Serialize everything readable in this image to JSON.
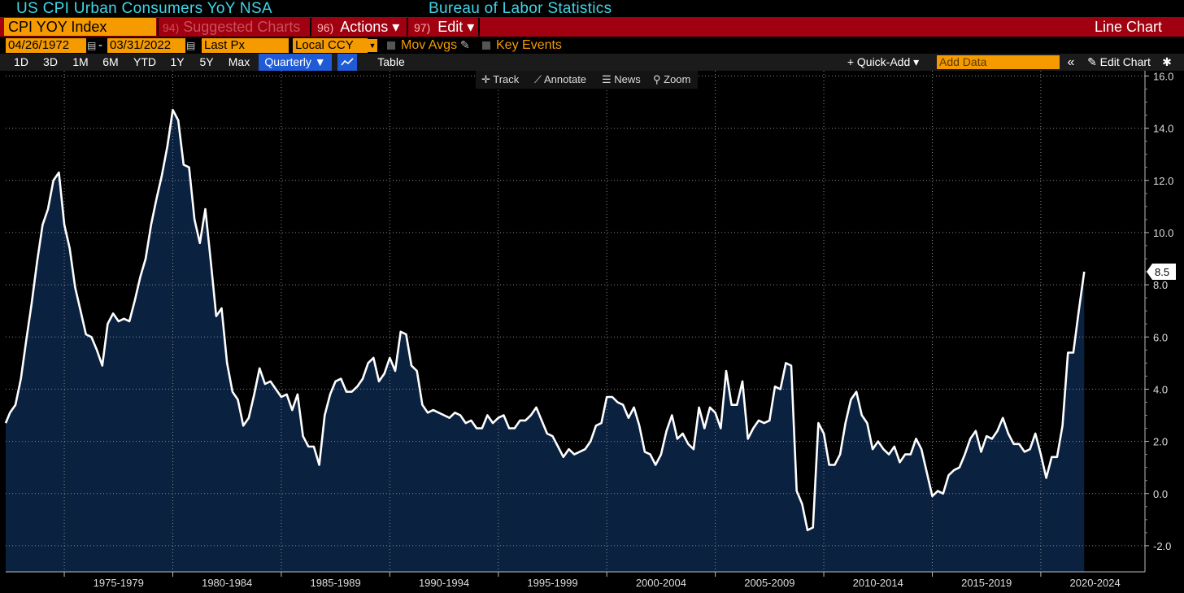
{
  "header": {
    "title": "US CPI Urban Consumers YoY NSA",
    "source": "Bureau of Labor Statistics"
  },
  "menu": {
    "ticker": "CPI YOY Index",
    "suggested_num": "94)",
    "suggested_label": "Suggested Charts",
    "actions_num": "96)",
    "actions_label": "Actions ▾",
    "edit_num": "97)",
    "edit_label": "Edit ▾",
    "chart_type": "Line Chart"
  },
  "settings": {
    "start_date": "04/26/1972",
    "date_separator": "-",
    "end_date": "03/31/2022",
    "field": "Last Px",
    "currency": "Local CCY",
    "mov_avgs": "Mov Avgs",
    "key_events": "Key Events"
  },
  "ranges": {
    "items": [
      "1D",
      "3D",
      "1M",
      "6M",
      "YTD",
      "1Y",
      "5Y",
      "Max"
    ],
    "period": "Quarterly ▼",
    "table": "Table",
    "quick_add": "+ Quick-Add ▾",
    "add_data_placeholder": "Add Data",
    "collapse": "«",
    "edit_chart": "✎ Edit Chart",
    "settings_icon": "✱"
  },
  "tools": {
    "track": "✛ Track",
    "annotate": "⟋ Annotate",
    "news": "☰ News",
    "zoom": "⚲ Zoom"
  },
  "colors": {
    "line": "#ffffff",
    "fill": "#0b2140",
    "header_text": "#3fd6e6",
    "menu_bar": "#a0000f",
    "field_orange": "#f59b00",
    "selected_blue": "#1f5bd6"
  },
  "chart_data": {
    "type": "area",
    "title": "",
    "xlabel": "",
    "ylabel": "",
    "frequency": "quarterly",
    "x_tick_labels": [
      "1975-1979",
      "1980-1984",
      "1985-1989",
      "1990-1994",
      "1995-1999",
      "2000-2004",
      "2005-2009",
      "2010-2014",
      "2015-2019",
      "2020-2024"
    ],
    "y_tick_labels": [
      "-2.0",
      "0.0",
      "2.0",
      "4.0",
      "6.0",
      "8.0",
      "10.0",
      "12.0",
      "14.0",
      "16.0"
    ],
    "ylim": [
      -3,
      16.2
    ],
    "xlim": [
      1972.3,
      2024.8
    ],
    "y_axis_side": "right",
    "grid": true,
    "last_value_label": "8.5",
    "series": [
      {
        "values": [
          [
            1972.3,
            2.7
          ],
          [
            1972.5,
            3.1
          ],
          [
            1972.75,
            3.4
          ],
          [
            1973.0,
            4.4
          ],
          [
            1973.25,
            5.9
          ],
          [
            1973.5,
            7.3
          ],
          [
            1973.75,
            8.9
          ],
          [
            1974.0,
            10.3
          ],
          [
            1974.25,
            10.9
          ],
          [
            1974.5,
            12.0
          ],
          [
            1974.75,
            12.3
          ],
          [
            1975.0,
            10.3
          ],
          [
            1975.25,
            9.4
          ],
          [
            1975.5,
            7.9
          ],
          [
            1975.75,
            7.0
          ],
          [
            1976.0,
            6.1
          ],
          [
            1976.25,
            6.0
          ],
          [
            1976.5,
            5.5
          ],
          [
            1976.75,
            4.9
          ],
          [
            1977.0,
            6.5
          ],
          [
            1977.25,
            6.9
          ],
          [
            1977.5,
            6.6
          ],
          [
            1977.75,
            6.7
          ],
          [
            1978.0,
            6.6
          ],
          [
            1978.25,
            7.4
          ],
          [
            1978.5,
            8.3
          ],
          [
            1978.75,
            9.0
          ],
          [
            1979.0,
            10.3
          ],
          [
            1979.25,
            11.3
          ],
          [
            1979.5,
            12.2
          ],
          [
            1979.75,
            13.3
          ],
          [
            1980.0,
            14.7
          ],
          [
            1980.25,
            14.3
          ],
          [
            1980.5,
            12.6
          ],
          [
            1980.75,
            12.5
          ],
          [
            1981.0,
            10.5
          ],
          [
            1981.25,
            9.6
          ],
          [
            1981.5,
            10.9
          ],
          [
            1981.75,
            8.9
          ],
          [
            1982.0,
            6.8
          ],
          [
            1982.25,
            7.1
          ],
          [
            1982.5,
            5.0
          ],
          [
            1982.75,
            3.9
          ],
          [
            1983.0,
            3.6
          ],
          [
            1983.25,
            2.6
          ],
          [
            1983.5,
            2.9
          ],
          [
            1983.75,
            3.8
          ],
          [
            1984.0,
            4.8
          ],
          [
            1984.25,
            4.2
          ],
          [
            1984.5,
            4.3
          ],
          [
            1984.75,
            4.0
          ],
          [
            1985.0,
            3.7
          ],
          [
            1985.25,
            3.8
          ],
          [
            1985.5,
            3.2
          ],
          [
            1985.75,
            3.8
          ],
          [
            1986.0,
            2.2
          ],
          [
            1986.25,
            1.8
          ],
          [
            1986.5,
            1.8
          ],
          [
            1986.75,
            1.1
          ],
          [
            1987.0,
            3.0
          ],
          [
            1987.25,
            3.8
          ],
          [
            1987.5,
            4.3
          ],
          [
            1987.75,
            4.4
          ],
          [
            1988.0,
            3.9
          ],
          [
            1988.25,
            3.9
          ],
          [
            1988.5,
            4.1
          ],
          [
            1988.75,
            4.4
          ],
          [
            1989.0,
            5.0
          ],
          [
            1989.25,
            5.2
          ],
          [
            1989.5,
            4.3
          ],
          [
            1989.75,
            4.6
          ],
          [
            1990.0,
            5.2
          ],
          [
            1990.25,
            4.7
          ],
          [
            1990.5,
            6.2
          ],
          [
            1990.75,
            6.1
          ],
          [
            1991.0,
            4.9
          ],
          [
            1991.25,
            4.7
          ],
          [
            1991.5,
            3.4
          ],
          [
            1991.75,
            3.1
          ],
          [
            1992.0,
            3.2
          ],
          [
            1992.25,
            3.1
          ],
          [
            1992.5,
            3.0
          ],
          [
            1992.75,
            2.9
          ],
          [
            1993.0,
            3.1
          ],
          [
            1993.25,
            3.0
          ],
          [
            1993.5,
            2.7
          ],
          [
            1993.75,
            2.8
          ],
          [
            1994.0,
            2.5
          ],
          [
            1994.25,
            2.5
          ],
          [
            1994.5,
            3.0
          ],
          [
            1994.75,
            2.7
          ],
          [
            1995.0,
            2.9
          ],
          [
            1995.25,
            3.0
          ],
          [
            1995.5,
            2.5
          ],
          [
            1995.75,
            2.5
          ],
          [
            1996.0,
            2.8
          ],
          [
            1996.25,
            2.8
          ],
          [
            1996.5,
            3.0
          ],
          [
            1996.75,
            3.3
          ],
          [
            1997.0,
            2.8
          ],
          [
            1997.25,
            2.3
          ],
          [
            1997.5,
            2.2
          ],
          [
            1997.75,
            1.8
          ],
          [
            1998.0,
            1.4
          ],
          [
            1998.25,
            1.7
          ],
          [
            1998.5,
            1.5
          ],
          [
            1998.75,
            1.6
          ],
          [
            1999.0,
            1.7
          ],
          [
            1999.25,
            2.0
          ],
          [
            1999.5,
            2.6
          ],
          [
            1999.75,
            2.7
          ],
          [
            2000.0,
            3.7
          ],
          [
            2000.25,
            3.7
          ],
          [
            2000.5,
            3.5
          ],
          [
            2000.75,
            3.4
          ],
          [
            2001.0,
            2.9
          ],
          [
            2001.25,
            3.3
          ],
          [
            2001.5,
            2.6
          ],
          [
            2001.75,
            1.6
          ],
          [
            2002.0,
            1.5
          ],
          [
            2002.25,
            1.1
          ],
          [
            2002.5,
            1.5
          ],
          [
            2002.75,
            2.4
          ],
          [
            2003.0,
            3.0
          ],
          [
            2003.25,
            2.1
          ],
          [
            2003.5,
            2.3
          ],
          [
            2003.75,
            1.9
          ],
          [
            2004.0,
            1.7
          ],
          [
            2004.25,
            3.3
          ],
          [
            2004.5,
            2.5
          ],
          [
            2004.75,
            3.3
          ],
          [
            2005.0,
            3.1
          ],
          [
            2005.25,
            2.5
          ],
          [
            2005.5,
            4.7
          ],
          [
            2005.75,
            3.4
          ],
          [
            2006.0,
            3.4
          ],
          [
            2006.25,
            4.3
          ],
          [
            2006.5,
            2.1
          ],
          [
            2006.75,
            2.5
          ],
          [
            2007.0,
            2.8
          ],
          [
            2007.25,
            2.7
          ],
          [
            2007.5,
            2.8
          ],
          [
            2007.75,
            4.1
          ],
          [
            2008.0,
            4.0
          ],
          [
            2008.25,
            5.0
          ],
          [
            2008.5,
            4.9
          ],
          [
            2008.75,
            0.1
          ],
          [
            2009.0,
            -0.4
          ],
          [
            2009.25,
            -1.4
          ],
          [
            2009.5,
            -1.3
          ],
          [
            2009.75,
            2.7
          ],
          [
            2010.0,
            2.3
          ],
          [
            2010.25,
            1.1
          ],
          [
            2010.5,
            1.1
          ],
          [
            2010.75,
            1.5
          ],
          [
            2011.0,
            2.7
          ],
          [
            2011.25,
            3.6
          ],
          [
            2011.5,
            3.9
          ],
          [
            2011.75,
            3.0
          ],
          [
            2012.0,
            2.7
          ],
          [
            2012.25,
            1.7
          ],
          [
            2012.5,
            2.0
          ],
          [
            2012.75,
            1.7
          ],
          [
            2013.0,
            1.5
          ],
          [
            2013.25,
            1.8
          ],
          [
            2013.5,
            1.2
          ],
          [
            2013.75,
            1.5
          ],
          [
            2014.0,
            1.5
          ],
          [
            2014.25,
            2.1
          ],
          [
            2014.5,
            1.7
          ],
          [
            2014.75,
            0.8
          ],
          [
            2015.0,
            -0.1
          ],
          [
            2015.25,
            0.1
          ],
          [
            2015.5,
            0.0
          ],
          [
            2015.75,
            0.7
          ],
          [
            2016.0,
            0.9
          ],
          [
            2016.25,
            1.0
          ],
          [
            2016.5,
            1.5
          ],
          [
            2016.75,
            2.1
          ],
          [
            2017.0,
            2.4
          ],
          [
            2017.25,
            1.6
          ],
          [
            2017.5,
            2.2
          ],
          [
            2017.75,
            2.1
          ],
          [
            2018.0,
            2.4
          ],
          [
            2018.25,
            2.9
          ],
          [
            2018.5,
            2.3
          ],
          [
            2018.75,
            1.9
          ],
          [
            2019.0,
            1.9
          ],
          [
            2019.25,
            1.6
          ],
          [
            2019.5,
            1.7
          ],
          [
            2019.75,
            2.3
          ],
          [
            2020.0,
            1.5
          ],
          [
            2020.25,
            0.6
          ],
          [
            2020.5,
            1.4
          ],
          [
            2020.75,
            1.4
          ],
          [
            2021.0,
            2.6
          ],
          [
            2021.25,
            5.4
          ],
          [
            2021.5,
            5.4
          ],
          [
            2021.75,
            7.0
          ],
          [
            2022.0,
            8.5
          ]
        ]
      }
    ]
  }
}
